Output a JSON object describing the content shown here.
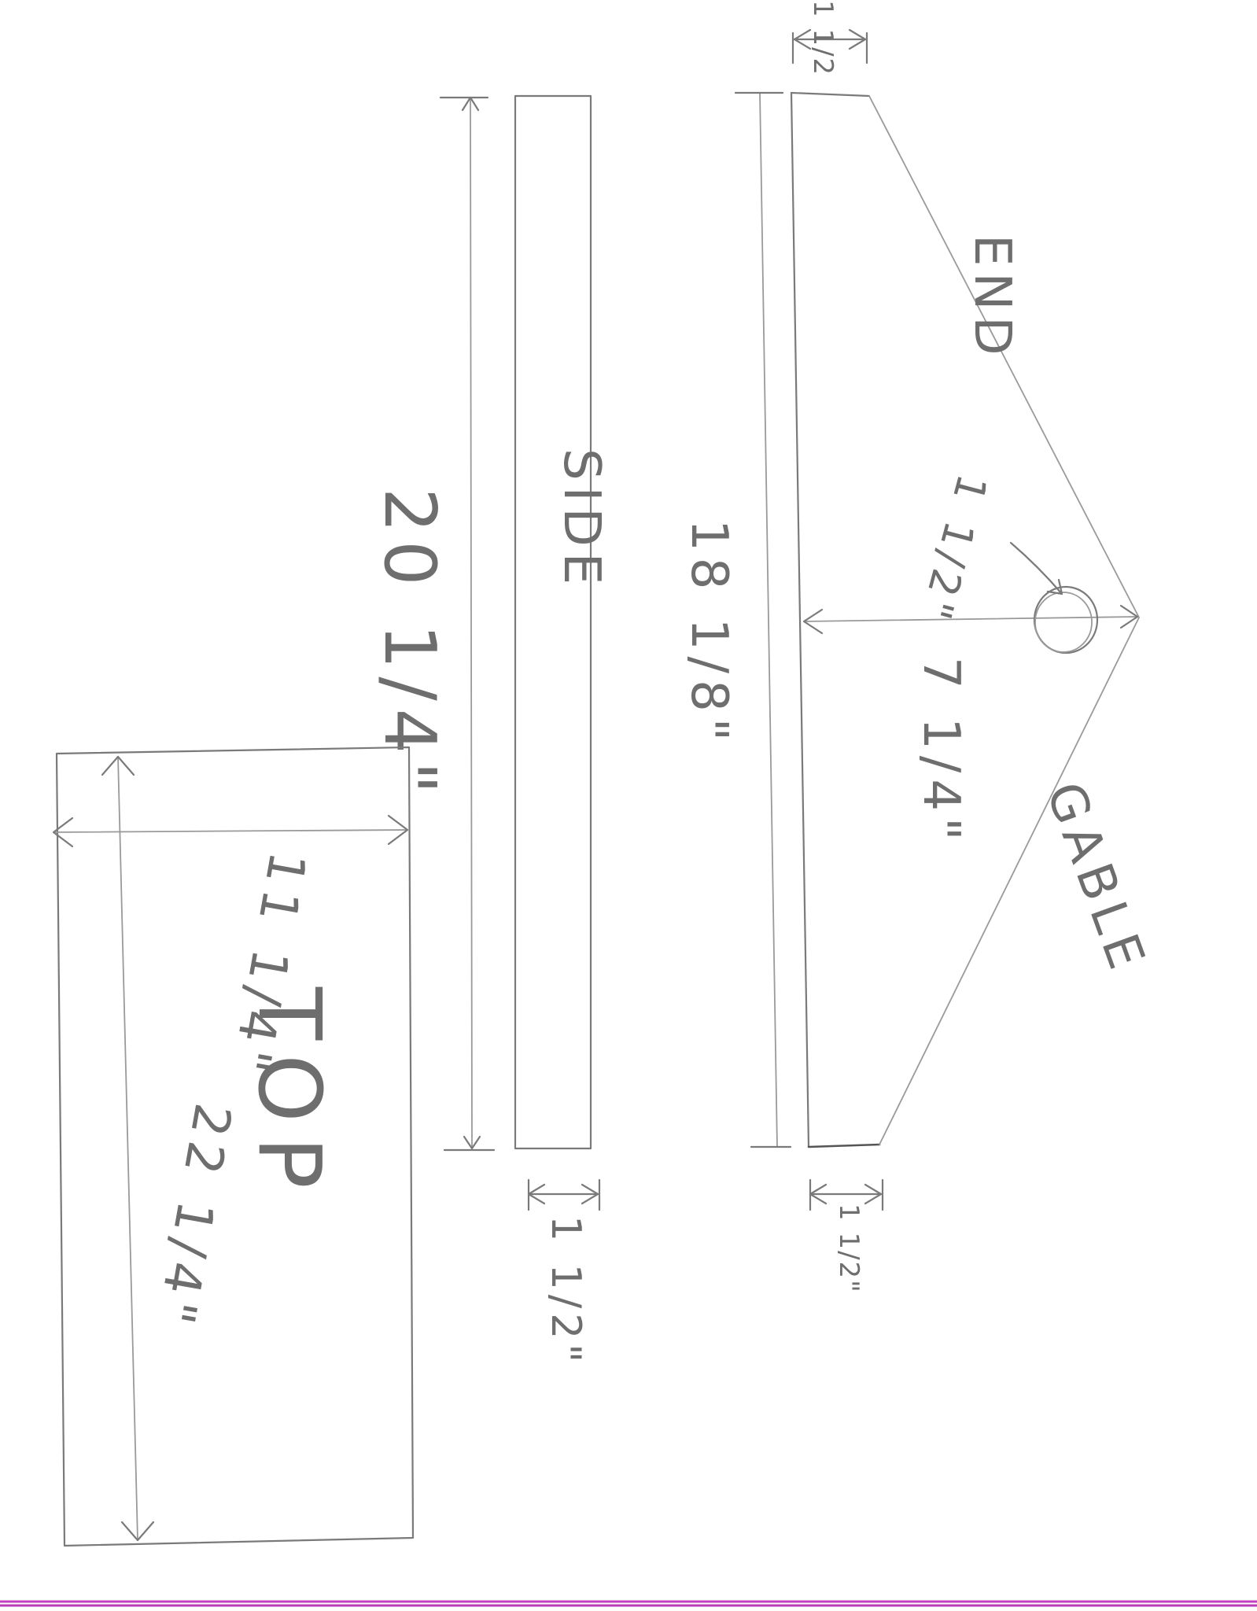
{
  "drawing": {
    "end_piece": {
      "label_end": "END",
      "label_gable": "GABLE",
      "length": "18 1/8\"",
      "height": "7 1/4\"",
      "hole": "1 1/2\"",
      "top_thickness": "1 1/2",
      "bottom_thickness": "1 1/2\""
    },
    "side_piece": {
      "label": "SIDE",
      "length": "20 1/4\"",
      "thickness": "1 1/2\""
    },
    "top_piece": {
      "label": "TOP",
      "width": "11 1/4\"",
      "length": "22 1/4\""
    }
  },
  "colors": {
    "pencil": "#7a7a7a",
    "border_purple": "#c040c0"
  }
}
